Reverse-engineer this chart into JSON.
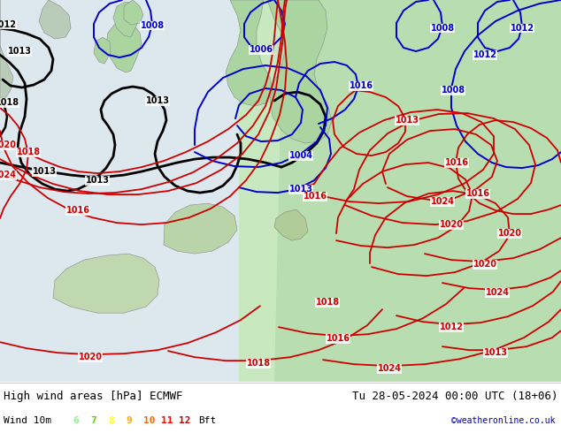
{
  "title_left": "High wind areas [hPa] ECMWF",
  "title_right": "Tu 28-05-2024 00:00 UTC (18+06)",
  "subtitle_left": "Wind 10m",
  "legend_values": [
    "6",
    "7",
    "8",
    "9",
    "10",
    "11",
    "12"
  ],
  "legend_colors": [
    "#90ee90",
    "#66cc00",
    "#ffff00",
    "#ffa500",
    "#ff6600",
    "#ff0000",
    "#cc0000"
  ],
  "legend_suffix": "Bft",
  "credit": "©weatheronline.co.uk",
  "credit_color": "#0000bb",
  "bg_color": "#ffffff",
  "ocean_color": "#ddeedd",
  "land_green_color": "#aaddaa",
  "land_gray_color": "#aaaaaa",
  "contour_color_low": "#0000cc",
  "contour_color_high": "#cc0000",
  "contour_color_main": "#000000",
  "figsize": [
    6.34,
    4.9
  ],
  "dpi": 100,
  "bottom_bar_color": "#f0f0f0",
  "text_color": "#000000",
  "font_size_main": 9,
  "font_size_legend": 8
}
